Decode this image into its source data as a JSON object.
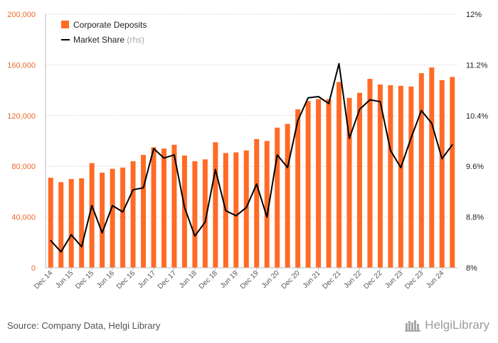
{
  "chart_data": {
    "type": "bar",
    "categories": [
      "Dec 14",
      "Mar 15",
      "Jun 15",
      "Sep 15",
      "Dec 15",
      "Mar 16",
      "Jun 16",
      "Sep 16",
      "Dec 16",
      "Mar 17",
      "Jun 17",
      "Sep 17",
      "Dec 17",
      "Mar 18",
      "Jun 18",
      "Sep 18",
      "Dec 18",
      "Mar 19",
      "Jun 19",
      "Sep 19",
      "Dec 19",
      "Mar 20",
      "Jun 20",
      "Sep 20",
      "Dec 20",
      "Mar 21",
      "Jun 21",
      "Sep 21",
      "Dec 21",
      "Mar 22",
      "Jun 22",
      "Sep 22",
      "Dec 22",
      "Mar 23",
      "Jun 23",
      "Sep 23",
      "Dec 23",
      "Mar 24",
      "Jun 24",
      "Sep 24"
    ],
    "x_tick_labels": [
      "Dec 14",
      "Jun 15",
      "Dec 15",
      "Jun 16",
      "Dec 16",
      "Jun 17",
      "Dec 17",
      "Jun 18",
      "Dec 18",
      "Jun 19",
      "Dec 19",
      "Jun 20",
      "Dec 20",
      "Jun 21",
      "Dec 21",
      "Jun 22",
      "Dec 22",
      "Jun 23",
      "Dec 23",
      "Jun 24"
    ],
    "series": [
      {
        "name": "Corporate Deposits",
        "type": "bar",
        "axis": "left",
        "color": "#ff6b26",
        "values": [
          71000,
          67500,
          70000,
          70500,
          82500,
          75000,
          78000,
          79000,
          84000,
          89000,
          95000,
          94000,
          97000,
          88500,
          84000,
          85500,
          99000,
          90500,
          91000,
          92500,
          101500,
          100000,
          110500,
          113500,
          125000,
          131500,
          133000,
          133000,
          146500,
          134000,
          138000,
          149000,
          144500,
          144000,
          143500,
          143000,
          153500,
          158000,
          148000,
          150500
        ]
      },
      {
        "name": "Market Share",
        "name_suffix": "(rhs)",
        "type": "line",
        "axis": "right",
        "color": "#000000",
        "values": [
          8.43,
          8.25,
          8.52,
          8.33,
          8.98,
          8.55,
          8.98,
          8.88,
          9.23,
          9.26,
          9.88,
          9.73,
          9.78,
          8.95,
          8.5,
          8.72,
          9.55,
          8.9,
          8.82,
          8.95,
          9.32,
          8.8,
          9.78,
          9.58,
          10.32,
          10.68,
          10.7,
          10.59,
          11.22,
          10.04,
          10.5,
          10.65,
          10.62,
          9.85,
          9.58,
          10.05,
          10.48,
          10.28,
          9.72,
          9.94
        ]
      }
    ],
    "y_left": {
      "ylim": [
        0,
        200000
      ],
      "ticks": [
        "0",
        "40,000",
        "80,000",
        "120,000",
        "160,000",
        "200,000"
      ],
      "tick_values": [
        0,
        40000,
        80000,
        120000,
        160000,
        200000
      ]
    },
    "y_right": {
      "ylim": [
        8,
        12
      ],
      "ticks": [
        "8%",
        "8.8%",
        "9.6%",
        "10.4%",
        "11.2%",
        "12%"
      ],
      "tick_values": [
        8,
        8.8,
        9.6,
        10.4,
        11.2,
        12
      ]
    },
    "grid": true,
    "legend_position": "top-left"
  },
  "footer": {
    "source": "Source: Company Data, Helgi Library",
    "logo_text": "HelgiLibrary"
  }
}
